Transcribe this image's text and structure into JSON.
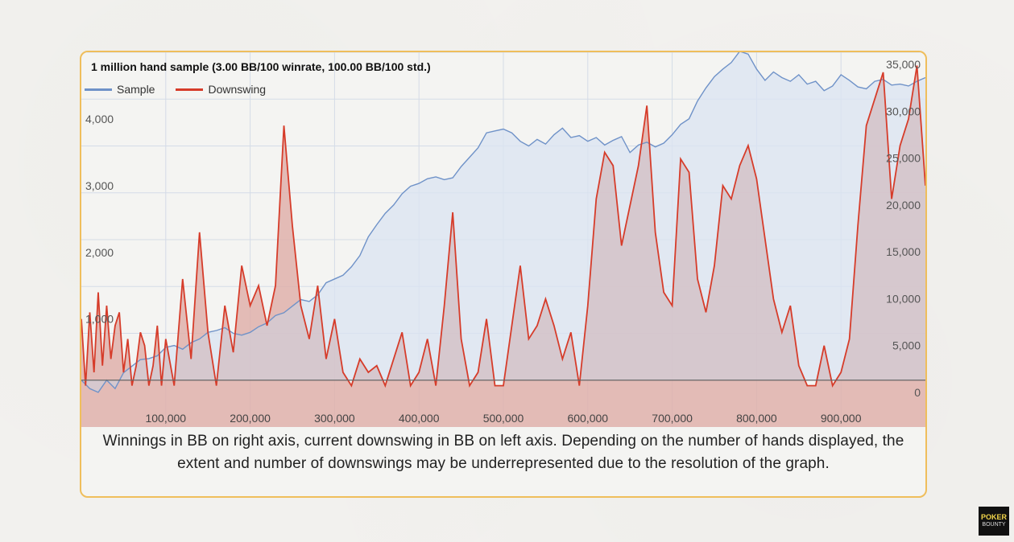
{
  "colors": {
    "frame_border": "#efbe5c",
    "sample_line": "#6f92c8",
    "sample_fill": "#dbe4f1",
    "downswing_line": "#d63c2a",
    "downswing_fill": "#f2c1bb",
    "grid": "#d4dbe7",
    "zero_line": "#666666"
  },
  "legend": {
    "sample": "Sample",
    "downswing": "Downswing"
  },
  "caption": "Winnings in BB on right axis, current downswing in BB on left axis. Depending on the number of hands displayed, the extent and number of downswings may be underrepresented due to the resolution of the graph.",
  "logo": {
    "text": "POKER",
    "sub": "BOUNTY"
  },
  "chart_data": {
    "type": "area",
    "title": "1 million hand sample (3.00 BB/100 winrate, 100.00 BB/100 std.)",
    "xlabel": "",
    "ylabel_left": "",
    "ylabel_right": "",
    "xlim": [
      0,
      1000000
    ],
    "x_ticks": [
      100000,
      200000,
      300000,
      400000,
      500000,
      600000,
      700000,
      800000,
      900000
    ],
    "x_tick_labels": [
      "100,000",
      "200,000",
      "300,000",
      "400,000",
      "500,000",
      "600,000",
      "700,000",
      "800,000",
      "900,000"
    ],
    "left_axis": {
      "range": [
        -620,
        5000
      ],
      "ticks": [
        1000,
        2000,
        3000,
        4000
      ],
      "tick_labels": [
        "1,000",
        "2,000",
        "3,000",
        "4,000"
      ]
    },
    "right_axis": {
      "range": [
        -5000,
        35000
      ],
      "ticks": [
        0,
        5000,
        10000,
        15000,
        20000,
        25000,
        30000,
        35000
      ],
      "tick_labels": [
        "0",
        "5,000",
        "10,000",
        "15,000",
        "20,000",
        "25,000",
        "30,000",
        "35,000"
      ]
    },
    "grid": true,
    "legend_position": "top-left",
    "series": [
      {
        "name": "Sample",
        "axis": "right",
        "x": [
          0,
          10000,
          20000,
          30000,
          40000,
          50000,
          60000,
          70000,
          80000,
          90000,
          100000,
          110000,
          120000,
          130000,
          140000,
          150000,
          160000,
          170000,
          180000,
          190000,
          200000,
          210000,
          220000,
          230000,
          240000,
          250000,
          260000,
          270000,
          280000,
          290000,
          300000,
          310000,
          320000,
          330000,
          340000,
          350000,
          360000,
          370000,
          380000,
          390000,
          400000,
          410000,
          420000,
          430000,
          440000,
          450000,
          460000,
          470000,
          480000,
          490000,
          500000,
          510000,
          520000,
          530000,
          540000,
          550000,
          560000,
          570000,
          580000,
          590000,
          600000,
          610000,
          620000,
          630000,
          640000,
          650000,
          660000,
          670000,
          680000,
          690000,
          700000,
          710000,
          720000,
          730000,
          740000,
          750000,
          760000,
          770000,
          780000,
          790000,
          800000,
          810000,
          820000,
          830000,
          840000,
          850000,
          860000,
          870000,
          880000,
          890000,
          900000,
          910000,
          920000,
          930000,
          940000,
          950000,
          960000,
          970000,
          980000,
          990000,
          1000000
        ],
        "values": [
          0,
          -900,
          -1300,
          0,
          -900,
          800,
          1500,
          2200,
          2300,
          2600,
          3500,
          3700,
          3300,
          4000,
          4400,
          5100,
          5300,
          5600,
          5000,
          4800,
          5100,
          5700,
          6100,
          6900,
          7200,
          7900,
          8600,
          8400,
          9100,
          10400,
          10800,
          11200,
          12100,
          13300,
          15300,
          16600,
          17800,
          18700,
          19900,
          20700,
          21000,
          21500,
          21700,
          21400,
          21600,
          22800,
          23800,
          24800,
          26400,
          26600,
          26800,
          26400,
          25500,
          25000,
          25700,
          25200,
          26200,
          26900,
          25900,
          26100,
          25500,
          25900,
          25100,
          25600,
          26000,
          24300,
          25100,
          25400,
          24900,
          25300,
          26200,
          27300,
          27900,
          29800,
          31200,
          32400,
          33200,
          33900,
          35100,
          34800,
          33200,
          32000,
          32900,
          32300,
          31900,
          32600,
          31600,
          31900,
          30900,
          31400,
          32600,
          32000,
          31300,
          31100,
          31900,
          32100,
          31500,
          31600,
          31400,
          31900,
          32300
        ]
      },
      {
        "name": "Downswing",
        "axis": "left",
        "x": [
          0,
          5000,
          10000,
          15000,
          20000,
          25000,
          30000,
          35000,
          40000,
          45000,
          50000,
          55000,
          60000,
          65000,
          70000,
          75000,
          80000,
          85000,
          90000,
          95000,
          100000,
          110000,
          120000,
          130000,
          140000,
          150000,
          160000,
          170000,
          180000,
          190000,
          200000,
          210000,
          220000,
          230000,
          240000,
          250000,
          260000,
          270000,
          280000,
          290000,
          300000,
          310000,
          320000,
          330000,
          340000,
          350000,
          360000,
          370000,
          380000,
          390000,
          400000,
          410000,
          420000,
          430000,
          440000,
          450000,
          460000,
          470000,
          480000,
          490000,
          500000,
          510000,
          520000,
          530000,
          540000,
          550000,
          560000,
          570000,
          580000,
          590000,
          600000,
          610000,
          620000,
          630000,
          640000,
          650000,
          660000,
          670000,
          680000,
          690000,
          700000,
          710000,
          720000,
          730000,
          740000,
          750000,
          760000,
          770000,
          780000,
          790000,
          800000,
          810000,
          820000,
          830000,
          840000,
          850000,
          860000,
          870000,
          880000,
          890000,
          900000,
          910000,
          920000,
          930000,
          940000,
          950000,
          960000,
          970000,
          980000,
          990000,
          1000000
        ],
        "values": [
          1000,
          0,
          1100,
          200,
          1400,
          300,
          1200,
          400,
          900,
          1100,
          200,
          700,
          0,
          300,
          800,
          600,
          0,
          300,
          900,
          0,
          700,
          0,
          1600,
          400,
          2300,
          800,
          0,
          1200,
          500,
          1800,
          1200,
          1500,
          900,
          1500,
          3900,
          2400,
          1200,
          700,
          1500,
          400,
          1000,
          200,
          0,
          400,
          200,
          300,
          0,
          400,
          800,
          0,
          200,
          700,
          0,
          1200,
          2600,
          700,
          0,
          200,
          1000,
          0,
          0,
          900,
          1800,
          700,
          900,
          1300,
          900,
          400,
          800,
          0,
          1200,
          2800,
          3500,
          3300,
          2100,
          2700,
          3300,
          4200,
          2300,
          1400,
          1200,
          3400,
          3200,
          1600,
          1100,
          1800,
          3000,
          2800,
          3300,
          3600,
          3100,
          2200,
          1300,
          800,
          1200,
          300,
          0,
          0,
          600,
          0,
          200,
          700,
          2400,
          3900,
          4300,
          4700,
          2800,
          3600,
          4000,
          4800,
          3000
        ]
      }
    ]
  }
}
